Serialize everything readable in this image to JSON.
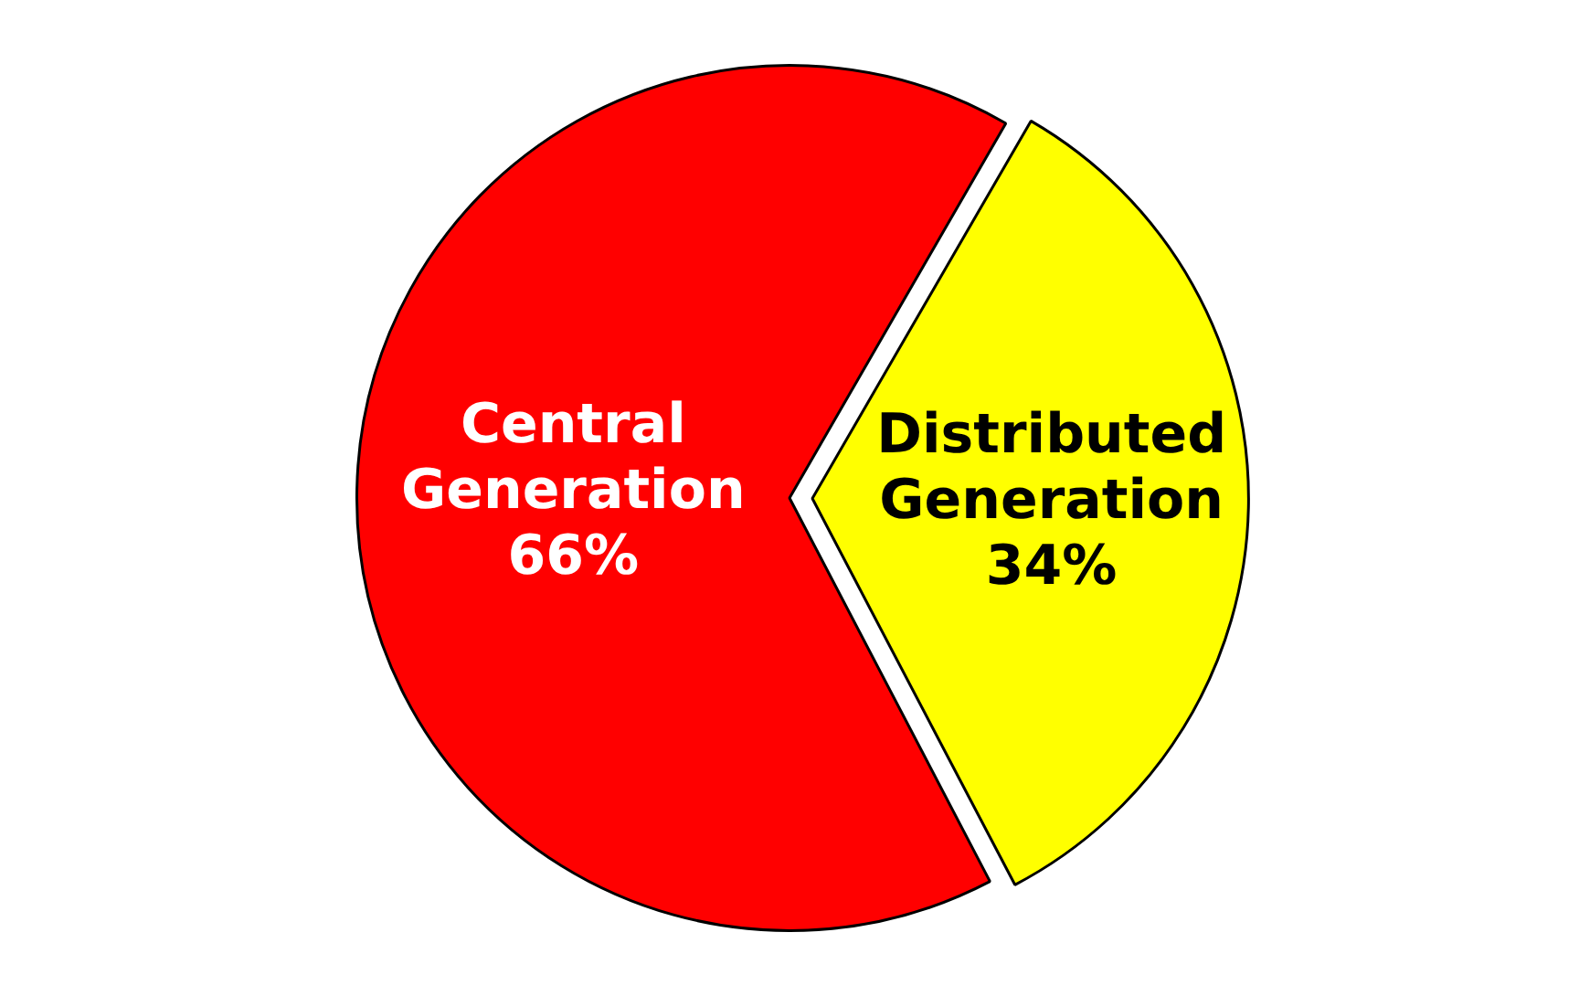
{
  "chart_data": {
    "type": "pie",
    "categories": [
      "Distributed Generation",
      "Central Generation"
    ],
    "values": [
      34,
      66
    ],
    "colors": [
      "#ffff00",
      "#ff0000"
    ],
    "value_labels": [
      "34%",
      "66%"
    ],
    "legend": false
  }
}
